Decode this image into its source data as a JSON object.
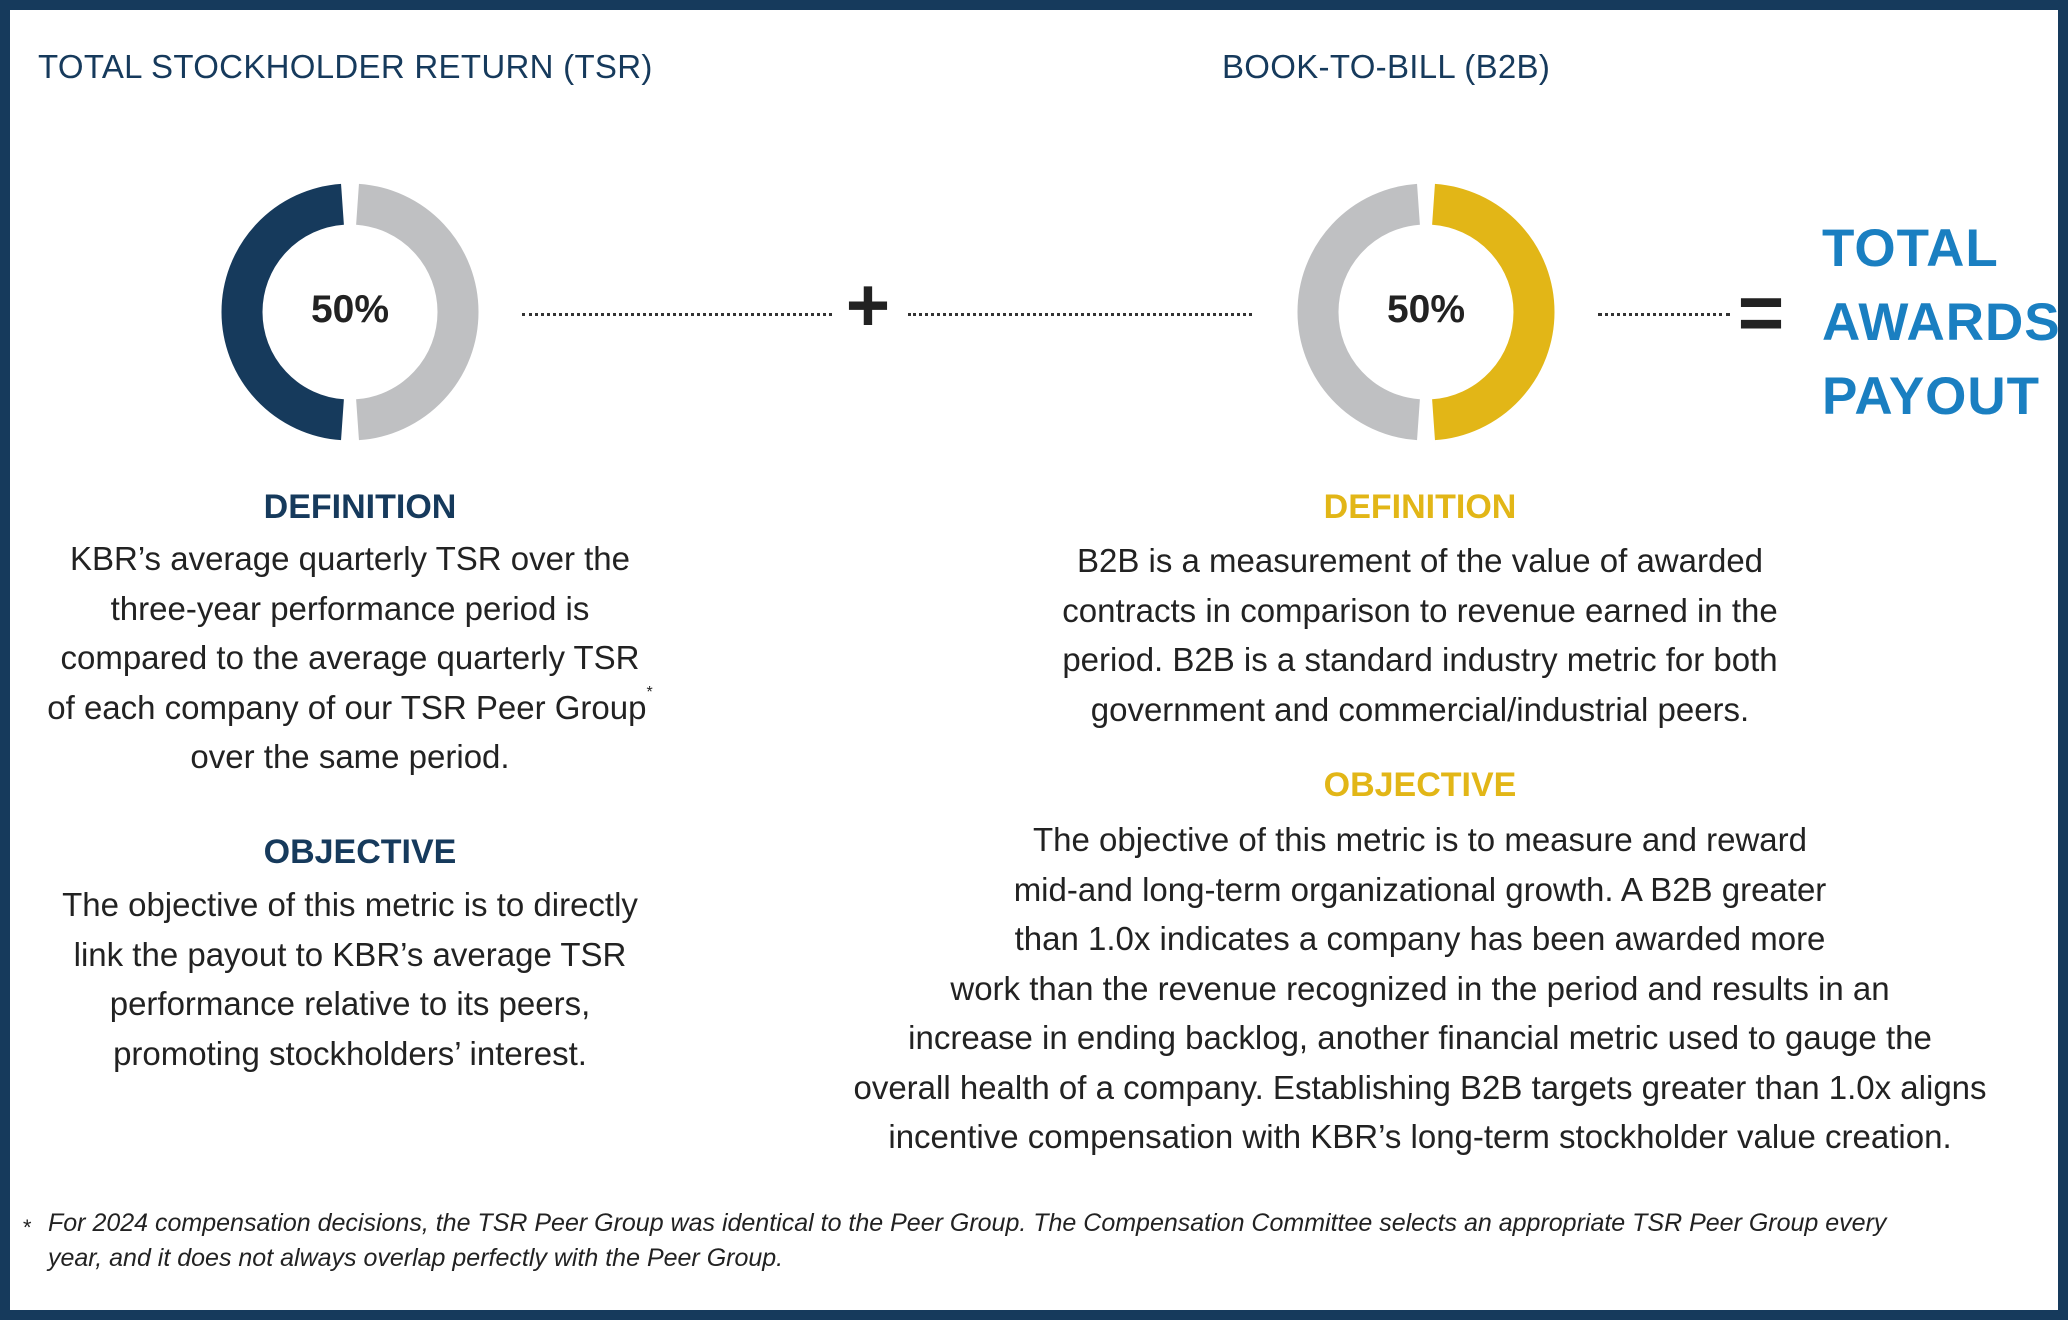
{
  "tsr": {
    "title": "TOTAL STOCKHOLDER RETURN (TSR)",
    "percent_label": "50%",
    "weight_fraction": 0.5,
    "color": "#163a5c",
    "definition_heading": "DEFINITION",
    "definition_lines": [
      "KBR’s average quarterly TSR over the",
      "three-year performance period is",
      "compared to the average quarterly TSR",
      "of each company of our TSR Peer Group",
      "over the same period."
    ],
    "footnote_mark": "*",
    "objective_heading": "OBJECTIVE",
    "objective_lines": [
      "The objective of this metric is to directly",
      "link the payout to KBR’s average TSR",
      "performance relative to its peers,",
      "promoting stockholders’ interest."
    ]
  },
  "b2b": {
    "title": "BOOK-TO-BILL (B2B)",
    "percent_label": "50%",
    "weight_fraction": 0.5,
    "color": "#e2b617",
    "definition_heading": "DEFINITION",
    "definition_lines": [
      "B2B is a measurement of the value of awarded",
      "contracts in comparison to revenue earned in the",
      "period. B2B is a standard industry metric for both",
      "government and commercial/industrial  peers."
    ],
    "objective_heading": "OBJECTIVE",
    "objective_lines": [
      "The objective of this metric is to measure and reward",
      "mid-and long-term organizational growth. A B2B greater",
      "than 1.0x indicates a company has been awarded more",
      "work than the revenue recognized in the period and results in an",
      "increase in ending backlog, another financial metric used to gauge the",
      "overall health of a company. Establishing B2B targets greater than 1.0x aligns",
      "incentive compensation with KBR’s long-term stockholder value creation."
    ]
  },
  "operators": {
    "plus": "+",
    "equals": "="
  },
  "result_lines": [
    "TOTAL",
    "AWARDS",
    "PAYOUT"
  ],
  "footnote": {
    "mark": "*",
    "lines": [
      "For 2024 compensation decisions, the TSR Peer Group was identical to the Peer Group. The Compensation Committee selects an appropriate TSR Peer Group every",
      "year, and it does not always overlap perfectly with the Peer Group."
    ]
  },
  "colors": {
    "navy": "#163a5c",
    "gold": "#e2b617",
    "gray": "#bfc0c2",
    "result_blue": "#1a7fc1"
  },
  "icons": [
    "plus-icon",
    "equals-icon"
  ]
}
